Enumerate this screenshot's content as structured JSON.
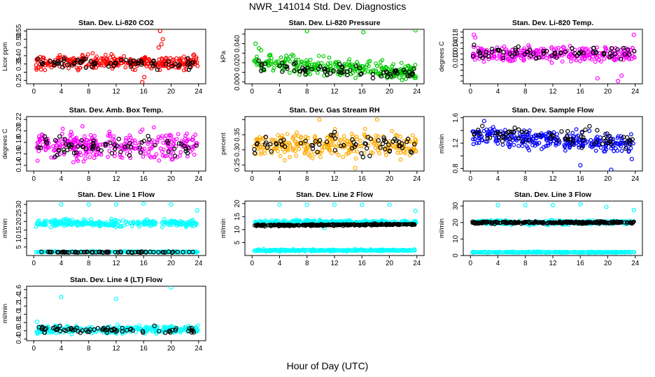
{
  "figure": {
    "title": "NWR_141014  Std. Dev. Diagnostics",
    "xlabel": "Hour of Day (UTC)"
  },
  "chart_data": [
    {
      "type": "scatter",
      "title": "Stan. Dev. Li-820 CO2",
      "ylabel": "Licor ppm",
      "xlim": [
        0,
        24
      ],
      "ylim": [
        0.23,
        0.56
      ],
      "xticks": [
        0,
        4,
        8,
        12,
        16,
        20,
        24
      ],
      "yticks": [
        0.25,
        0.3,
        0.35,
        0.4,
        0.45,
        0.5,
        0.55
      ],
      "yticklabels": [
        "0.25",
        "",
        "0.35",
        "0.40",
        "",
        "0.50",
        "0.55"
      ],
      "color": "#ff0000",
      "series": [
        {
          "color": "#ff0000",
          "band": [
            0.3,
            0.42
          ],
          "center": 0.36,
          "outliers": [
            [
              18.4,
              0.55
            ],
            [
              18.8,
              0.5
            ],
            [
              18.6,
              0.47
            ],
            [
              15.8,
              0.24
            ],
            [
              16.1,
              0.27
            ],
            [
              18.2,
              0.45
            ]
          ]
        },
        {
          "color": "#000000",
          "sparse": true,
          "band": [
            0.31,
            0.4
          ],
          "center": 0.355
        }
      ]
    },
    {
      "type": "scatter",
      "title": "Stan. Dev. Li-820 Pressure",
      "ylabel": "kPa",
      "xlim": [
        0,
        24
      ],
      "ylim": [
        -0.002,
        0.055
      ],
      "xticks": [
        0,
        4,
        8,
        12,
        16,
        20,
        24
      ],
      "yticks": [
        0.0,
        0.01,
        0.02,
        0.03,
        0.04,
        0.05
      ],
      "yticklabels": [
        "0.000",
        "",
        "0.020",
        "",
        "0.040",
        ""
      ],
      "color": "#00cc00",
      "series": [
        {
          "color": "#00cc00",
          "band": [
            0.002,
            0.028
          ],
          "center": 0.015,
          "trend": -0.0004,
          "outliers": [
            [
              0.5,
              0.04
            ],
            [
              1.0,
              0.035
            ],
            [
              8.0,
              0.053
            ],
            [
              16.2,
              0.052
            ],
            [
              23.8,
              0.054
            ],
            [
              1.3,
              0.033
            ]
          ]
        },
        {
          "color": "#000000",
          "sparse": true,
          "band": [
            0.004,
            0.02
          ],
          "center": 0.012,
          "trend": -0.0003
        }
      ]
    },
    {
      "type": "scatter",
      "title": "Stan. Dev. Li-820 Temp.",
      "ylabel": "degrees C",
      "xlim": [
        0,
        24
      ],
      "ylim": [
        0.001,
        0.021
      ],
      "xticks": [
        0,
        4,
        8,
        12,
        16,
        20,
        24
      ],
      "yticks": [
        0.002,
        0.004,
        0.006,
        0.008,
        0.01,
        0.012,
        0.014,
        0.016,
        0.018,
        0.02
      ],
      "yticklabels": [
        "",
        "",
        "",
        "",
        "0.010",
        "",
        "0.014",
        "",
        "0.018",
        ""
      ],
      "color": "#ff00ff",
      "series": [
        {
          "color": "#ff00ff",
          "band": [
            0.008,
            0.016
          ],
          "center": 0.012,
          "outliers": [
            [
              0.5,
              0.019
            ],
            [
              0.7,
              0.018
            ],
            [
              21.5,
              0.002
            ],
            [
              22.0,
              0.004
            ],
            [
              23.8,
              0.019
            ],
            [
              18.5,
              0.003
            ]
          ]
        },
        {
          "color": "#000000",
          "sparse": true,
          "band": [
            0.009,
            0.016
          ],
          "center": 0.0125
        }
      ]
    },
    {
      "type": "scatter",
      "title": "Stan. Dev. Amb. Box Temp.",
      "ylabel": "degrees C",
      "xlim": [
        0,
        24
      ],
      "ylim": [
        0.13,
        0.225
      ],
      "xticks": [
        0,
        4,
        8,
        12,
        16,
        20,
        24
      ],
      "yticks": [
        0.14,
        0.16,
        0.18,
        0.2,
        0.22
      ],
      "yticklabels": [
        "0.14",
        "0.16",
        "0.18",
        "0.20",
        "0.22"
      ],
      "color": "#ff00ff",
      "series": [
        {
          "color": "#ff00ff",
          "band": [
            0.145,
            0.21
          ],
          "center": 0.175,
          "outliers": []
        },
        {
          "color": "#000000",
          "sparse": true,
          "band": [
            0.145,
            0.2
          ],
          "center": 0.172
        }
      ]
    },
    {
      "type": "scatter",
      "title": "Stan. Dev. Gas Stream RH",
      "ylabel": "percent",
      "xlim": [
        0,
        24
      ],
      "ylim": [
        0.23,
        0.41
      ],
      "xticks": [
        0,
        4,
        8,
        12,
        16,
        20,
        24
      ],
      "yticks": [
        0.25,
        0.3,
        0.35,
        0.4
      ],
      "yticklabels": [
        "0.25",
        "0.30",
        "0.35",
        ""
      ],
      "color": "#ffaa00",
      "series": [
        {
          "color": "#ffaa00",
          "band": [
            0.26,
            0.37
          ],
          "center": 0.315,
          "outliers": [
            [
              18.2,
              0.4
            ],
            [
              9.8,
              0.4
            ],
            [
              15.0,
              0.24
            ]
          ]
        },
        {
          "color": "#000000",
          "sparse": true,
          "band": [
            0.27,
            0.37
          ],
          "center": 0.32
        }
      ]
    },
    {
      "type": "scatter",
      "title": "Stan. Dev. Sample Flow",
      "ylabel": "ml/min",
      "xlim": [
        0,
        24
      ],
      "ylim": [
        0.76,
        1.62
      ],
      "xticks": [
        0,
        4,
        8,
        12,
        16,
        20,
        24
      ],
      "yticks": [
        0.8,
        1.0,
        1.2,
        1.4,
        1.6
      ],
      "yticklabels": [
        "0.8",
        "",
        "1.2",
        "",
        "1.6"
      ],
      "color": "#0000ff",
      "series": [
        {
          "color": "#0000ff",
          "band": [
            1.05,
            1.45
          ],
          "center": 1.25,
          "trend": -0.006,
          "outliers": [
            [
              2.0,
              1.55
            ],
            [
              16.0,
              0.85
            ],
            [
              20.5,
              0.78
            ],
            [
              23.5,
              0.95
            ]
          ]
        },
        {
          "color": "#000000",
          "sparse": true,
          "band": [
            1.1,
            1.5
          ],
          "center": 1.3,
          "trend": -0.006
        }
      ]
    },
    {
      "type": "scatter",
      "title": "Stan. Dev. Line 1 Flow",
      "ylabel": "ml/min",
      "xlim": [
        0,
        24
      ],
      "ylim": [
        0,
        32
      ],
      "xticks": [
        0,
        4,
        8,
        12,
        16,
        20,
        24
      ],
      "yticks": [
        5,
        10,
        15,
        20,
        25,
        30
      ],
      "yticklabels": [
        "5",
        "10",
        "15",
        "20",
        "25",
        "30"
      ],
      "color": "#00ffff",
      "series": [
        {
          "color": "#00ffff",
          "band": [
            16,
            22
          ],
          "center": 19,
          "outliers": [
            [
              4.0,
              30
            ],
            [
              8.0,
              30
            ],
            [
              12.0,
              30
            ],
            [
              16.0,
              30.5
            ],
            [
              20.0,
              30
            ],
            [
              23.8,
              26.5
            ]
          ]
        },
        {
          "color": "#00ffff",
          "band": [
            1.6,
            2.6
          ],
          "center": 2.1
        },
        {
          "color": "#000000",
          "sparse": true,
          "band": [
            1.7,
            2.4
          ],
          "center": 2.0
        }
      ]
    },
    {
      "type": "scatter",
      "title": "Stan. Dev. Line 2 Flow",
      "ylabel": "ml/min",
      "xlim": [
        0,
        24
      ],
      "ylim": [
        0,
        21
      ],
      "xticks": [
        0,
        4,
        8,
        12,
        16,
        20,
        24
      ],
      "yticks": [
        5,
        10,
        15,
        20
      ],
      "yticklabels": [
        "5",
        "10",
        "15",
        "20"
      ],
      "color": "#00ffff",
      "series": [
        {
          "color": "#00ffff",
          "band": [
            11.5,
            13.8
          ],
          "center": 12.8,
          "outliers": [
            [
              4.0,
              19.6
            ],
            [
              8.0,
              19.6
            ],
            [
              12.0,
              19.6
            ],
            [
              16.0,
              19.6
            ],
            [
              20.0,
              19.6
            ],
            [
              23.8,
              17.2
            ],
            [
              10.5,
              10.6
            ]
          ]
        },
        {
          "color": "#00ffff",
          "band": [
            1.5,
            2.5
          ],
          "center": 2.0
        },
        {
          "color": "#000000",
          "band": [
            11.2,
            12.2
          ],
          "center": 11.8,
          "trend": 0.02
        }
      ]
    },
    {
      "type": "scatter",
      "title": "Stan. Dev. Line 3 Flow",
      "ylabel": "ml/min",
      "xlim": [
        0,
        24
      ],
      "ylim": [
        0,
        33
      ],
      "xticks": [
        0,
        4,
        8,
        12,
        16,
        20,
        24
      ],
      "yticks": [
        0,
        10,
        20,
        30
      ],
      "yticklabels": [
        "0",
        "10",
        "20",
        "30"
      ],
      "color": "#00ffff",
      "series": [
        {
          "color": "#00ffff",
          "band": [
            18,
            22
          ],
          "center": 20,
          "outliers": [
            [
              4.0,
              30.5
            ],
            [
              8.0,
              30.5
            ],
            [
              12.0,
              30.5
            ],
            [
              16.0,
              31
            ],
            [
              19.8,
              29.5
            ],
            [
              23.8,
              27.5
            ]
          ]
        },
        {
          "color": "#00ffff",
          "band": [
            1.5,
            2.5
          ],
          "center": 2.0
        },
        {
          "color": "#000000",
          "band": [
            19,
            21
          ],
          "center": 20
        }
      ]
    },
    {
      "type": "scatter",
      "title": "Stan. Dev. Line 4 (LT) Flow",
      "ylabel": "ml/min",
      "xlim": [
        0,
        24
      ],
      "ylim": [
        0.36,
        1.68
      ],
      "xticks": [
        0,
        4,
        8,
        12,
        16,
        20,
        24
      ],
      "yticks": [
        0.4,
        0.6,
        0.8,
        1.0,
        1.2,
        1.4,
        1.6
      ],
      "yticklabels": [
        "0.4",
        "0.6",
        "0.8",
        "1.0",
        "1.2",
        "1.4",
        "1.6"
      ],
      "color": "#00ffff",
      "series": [
        {
          "color": "#00ffff",
          "band": [
            0.5,
            0.76
          ],
          "center": 0.63,
          "outliers": [
            [
              4.0,
              1.42
            ],
            [
              12.0,
              1.37
            ],
            [
              20.0,
              1.65
            ],
            [
              0.5,
              0.82
            ]
          ]
        },
        {
          "color": "#000000",
          "sparse": true,
          "band": [
            0.5,
            0.75
          ],
          "center": 0.62
        }
      ]
    }
  ]
}
